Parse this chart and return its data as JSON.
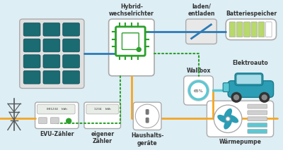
{
  "bg_color": "#ddeef5",
  "blue_color": "#2c7bb6",
  "orange_color": "#f5a623",
  "green_color": "#2ca02c",
  "teal_color": "#1a6b72",
  "light_green": "#b8d96b",
  "box_bg": "#f0f0f0",
  "labels": {
    "hybrid": "Hybrid-\nwechselrichter",
    "laden": "laden/\nentladen",
    "battery": "Batteriespeicher",
    "wallbox": "Wallbox",
    "elektroauto": "Elektroauto",
    "evu": "EVU-Zähler",
    "eigener": "eigener\nZähler",
    "haushalts": "Haushalts-\ngeräte",
    "waermepumpe": "Wärmepumpe"
  },
  "solar_rows": 4,
  "solar_cols": 3,
  "battery_bars": 6,
  "battery_filled": 5,
  "wallbox_percent": "65%"
}
